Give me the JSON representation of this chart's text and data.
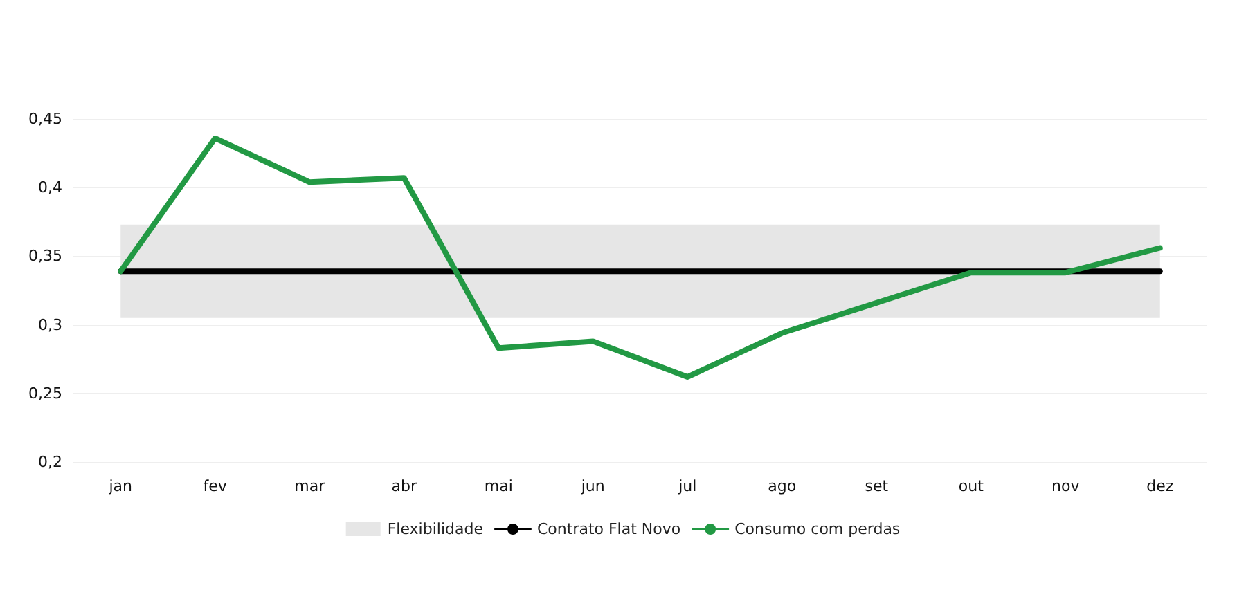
{
  "chart_data": {
    "type": "line",
    "categories": [
      "jan",
      "fev",
      "mar",
      "abr",
      "mai",
      "jun",
      "jul",
      "ago",
      "set",
      "out",
      "nov",
      "dez"
    ],
    "series": [
      {
        "name": "Contrato Flat Novo",
        "color": "#000000",
        "values": [
          0.339,
          0.339,
          0.339,
          0.339,
          0.339,
          0.339,
          0.339,
          0.339,
          0.339,
          0.339,
          0.339,
          0.339
        ]
      },
      {
        "name": "Consumo com perdas",
        "color": "#229944",
        "values": [
          0.339,
          0.436,
          0.404,
          0.407,
          0.283,
          0.288,
          0.262,
          0.294,
          0.316,
          0.338,
          0.338,
          0.356
        ]
      }
    ],
    "bands": [
      {
        "axis": "y",
        "from": 0.305,
        "to": 0.373,
        "label": "Flexibilidade",
        "color": "#e6e6e6"
      }
    ],
    "ylim": [
      0.2,
      0.45
    ],
    "yticks": [
      {
        "value": 0.2,
        "label": "0,2"
      },
      {
        "value": 0.25,
        "label": "0,25"
      },
      {
        "value": 0.3,
        "label": "0,3"
      },
      {
        "value": 0.35,
        "label": "0,35"
      },
      {
        "value": 0.4,
        "label": "0,4"
      },
      {
        "value": 0.45,
        "label": "0,45"
      }
    ],
    "grid": "y",
    "legend": "bottom",
    "marker": "none",
    "line_style": "solid"
  }
}
